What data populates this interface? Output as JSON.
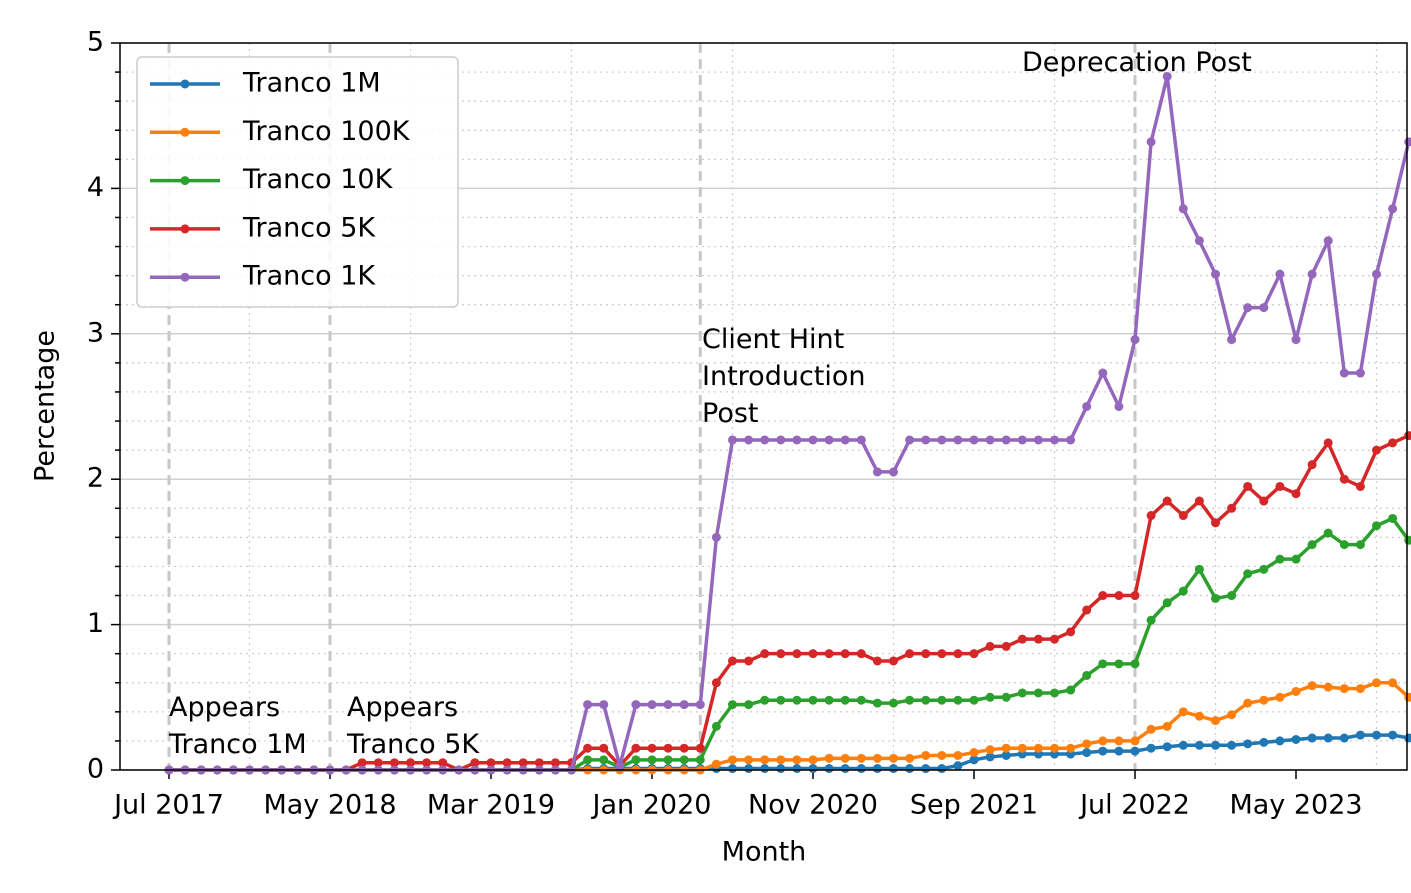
{
  "chart_data": {
    "type": "line",
    "xlabel": "Month",
    "ylabel": "Percentage",
    "categories": [
      "Jul 2017",
      null,
      null,
      null,
      null,
      null,
      null,
      null,
      null,
      null,
      "May 2018",
      null,
      null,
      null,
      null,
      null,
      null,
      null,
      null,
      null,
      "Mar 2019",
      null,
      null,
      null,
      null,
      null,
      null,
      null,
      null,
      null,
      "Jan 2020",
      null,
      null,
      null,
      null,
      null,
      null,
      null,
      null,
      null,
      "Nov 2020",
      null,
      null,
      null,
      null,
      null,
      null,
      null,
      null,
      null,
      "Sep 2021",
      null,
      null,
      null,
      null,
      null,
      null,
      null,
      null,
      null,
      "Jul 2022",
      null,
      null,
      null,
      null,
      null,
      null,
      null,
      null,
      null,
      "May 2023",
      null,
      null,
      null,
      null,
      null,
      null,
      null
    ],
    "series": [
      {
        "name": "Tranco 1M",
        "color": "#1f77b4",
        "values": [
          0,
          0,
          0,
          0,
          0,
          0,
          0,
          0,
          0,
          0,
          0,
          0,
          0,
          0,
          0,
          0,
          0,
          0,
          0,
          0,
          0,
          0,
          0,
          0,
          0,
          0,
          0.01,
          0.01,
          0.01,
          0.01,
          0.01,
          0.01,
          0.01,
          0.01,
          0.01,
          0.01,
          0.01,
          0.01,
          0.01,
          0.01,
          0.01,
          0.01,
          0.01,
          0.01,
          0.01,
          0.01,
          0.01,
          0.01,
          0.01,
          0.03,
          0.07,
          0.09,
          0.1,
          0.11,
          0.11,
          0.11,
          0.11,
          0.12,
          0.13,
          0.13,
          0.13,
          0.15,
          0.16,
          0.17,
          0.17,
          0.17,
          0.17,
          0.18,
          0.19,
          0.2,
          0.21,
          0.22,
          0.22,
          0.22,
          0.24,
          0.24,
          0.24,
          0.22
        ]
      },
      {
        "name": "Tranco 100K",
        "color": "#ff7f0e",
        "values": [
          0,
          0,
          0,
          0,
          0,
          0,
          0,
          0,
          0,
          0,
          0,
          0,
          0,
          0,
          0,
          0,
          0,
          0,
          0,
          0,
          0,
          0,
          0,
          0,
          0,
          0,
          0,
          0,
          0,
          0,
          0,
          0,
          0,
          0,
          0.04,
          0.07,
          0.07,
          0.07,
          0.07,
          0.07,
          0.07,
          0.08,
          0.08,
          0.08,
          0.08,
          0.08,
          0.08,
          0.1,
          0.1,
          0.1,
          0.12,
          0.14,
          0.15,
          0.15,
          0.15,
          0.15,
          0.15,
          0.18,
          0.2,
          0.2,
          0.2,
          0.28,
          0.3,
          0.4,
          0.37,
          0.34,
          0.38,
          0.46,
          0.48,
          0.5,
          0.54,
          0.58,
          0.57,
          0.56,
          0.56,
          0.6,
          0.6,
          0.5
        ]
      },
      {
        "name": "Tranco 10K",
        "color": "#2ca02c",
        "values": [
          0,
          0,
          0,
          0,
          0,
          0,
          0,
          0,
          0,
          0,
          0,
          0,
          0,
          0,
          0,
          0,
          0,
          0,
          0,
          0,
          0,
          0,
          0,
          0,
          0,
          0,
          0.07,
          0.07,
          0.02,
          0.07,
          0.07,
          0.07,
          0.07,
          0.07,
          0.3,
          0.45,
          0.45,
          0.48,
          0.48,
          0.48,
          0.48,
          0.48,
          0.48,
          0.48,
          0.46,
          0.46,
          0.48,
          0.48,
          0.48,
          0.48,
          0.48,
          0.5,
          0.5,
          0.53,
          0.53,
          0.53,
          0.55,
          0.65,
          0.73,
          0.73,
          0.73,
          1.03,
          1.15,
          1.23,
          1.38,
          1.18,
          1.2,
          1.35,
          1.38,
          1.45,
          1.45,
          1.55,
          1.63,
          1.55,
          1.55,
          1.68,
          1.73,
          1.58
        ]
      },
      {
        "name": "Tranco 5K",
        "color": "#d62728",
        "values": [
          0,
          0,
          0,
          0,
          0,
          0,
          0,
          0,
          0,
          0,
          0,
          0,
          0.05,
          0.05,
          0.05,
          0.05,
          0.05,
          0.05,
          0,
          0.05,
          0.05,
          0.05,
          0.05,
          0.05,
          0.05,
          0.05,
          0.15,
          0.15,
          0.03,
          0.15,
          0.15,
          0.15,
          0.15,
          0.15,
          0.6,
          0.75,
          0.75,
          0.8,
          0.8,
          0.8,
          0.8,
          0.8,
          0.8,
          0.8,
          0.75,
          0.75,
          0.8,
          0.8,
          0.8,
          0.8,
          0.8,
          0.85,
          0.85,
          0.9,
          0.9,
          0.9,
          0.95,
          1.1,
          1.2,
          1.2,
          1.2,
          1.75,
          1.85,
          1.75,
          1.85,
          1.7,
          1.8,
          1.95,
          1.85,
          1.95,
          1.9,
          2.1,
          2.25,
          2.0,
          1.95,
          2.2,
          2.25,
          2.3
        ]
      },
      {
        "name": "Tranco 1K",
        "color": "#9467bd",
        "values": [
          0,
          0,
          0,
          0,
          0,
          0,
          0,
          0,
          0,
          0,
          0,
          0,
          0,
          0,
          0,
          0,
          0,
          0,
          0,
          0,
          0,
          0,
          0,
          0,
          0,
          0,
          0.45,
          0.45,
          0.03,
          0.45,
          0.45,
          0.45,
          0.45,
          0.45,
          1.6,
          2.27,
          2.27,
          2.27,
          2.27,
          2.27,
          2.27,
          2.27,
          2.27,
          2.27,
          2.05,
          2.05,
          2.27,
          2.27,
          2.27,
          2.27,
          2.27,
          2.27,
          2.27,
          2.27,
          2.27,
          2.27,
          2.27,
          2.5,
          2.73,
          2.5,
          2.96,
          4.32,
          4.77,
          3.86,
          3.64,
          3.41,
          2.96,
          3.18,
          3.18,
          3.41,
          2.96,
          3.41,
          3.64,
          2.73,
          2.73,
          3.41,
          3.86,
          4.32
        ]
      }
    ],
    "ylim": [
      0,
      5
    ],
    "yticks": [
      0,
      1,
      2,
      3,
      4,
      5
    ],
    "yminorticks": [
      0.2,
      0.4,
      0.6,
      0.8,
      1.2,
      1.4,
      1.6,
      1.8,
      2.2,
      2.4,
      2.6,
      2.8,
      3.2,
      3.4,
      3.6,
      3.8,
      4.2,
      4.4,
      4.6,
      4.8
    ],
    "grid": true,
    "legend": "upper left",
    "annotations": [
      "Appears\nTranco 1M",
      "Appears\nTranco 5K",
      "Client Hint\nIntroduction\nPost",
      "Deprecation Post"
    ]
  }
}
